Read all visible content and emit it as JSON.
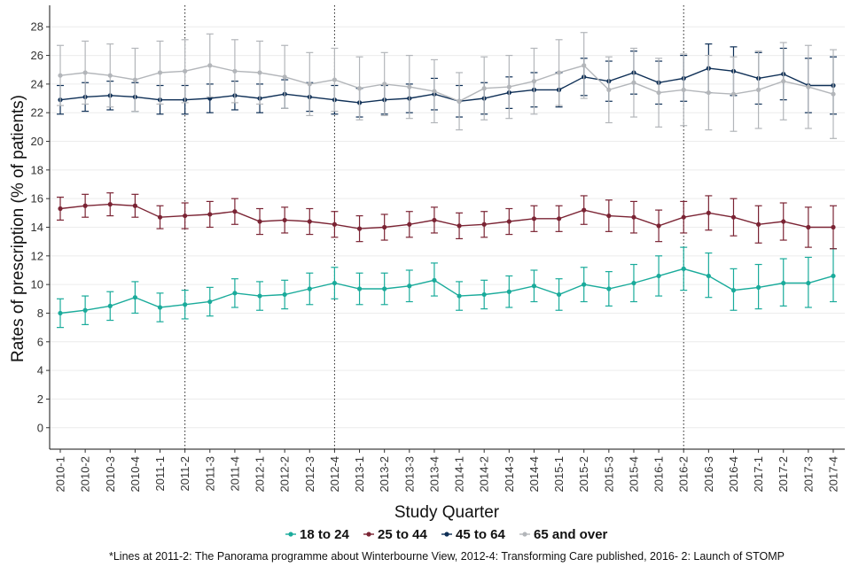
{
  "chart_data": {
    "type": "line",
    "xlabel": "Study Quarter",
    "ylabel": "Rates of prescription (% of patients)",
    "ylim": [
      -1.5,
      29.5
    ],
    "yticks": [
      0,
      2,
      4,
      6,
      8,
      10,
      12,
      14,
      16,
      18,
      20,
      22,
      24,
      26,
      28
    ],
    "grid": "horizontal",
    "legend_position": "bottom",
    "x": [
      "2010-1",
      "2010-2",
      "2010-3",
      "2010-4",
      "2011-1",
      "2011-2",
      "2011-3",
      "2011-4",
      "2012-1",
      "2012-2",
      "2012-3",
      "2012-4",
      "2013-1",
      "2013-2",
      "2013-3",
      "2013-4",
      "2014-1",
      "2014-2",
      "2014-3",
      "2014-4",
      "2015-1",
      "2015-2",
      "2015-3",
      "2015-4",
      "2016-1",
      "2016-2",
      "2016-3",
      "2016-4",
      "2017-1",
      "2017-2",
      "2017-3",
      "2017-4"
    ],
    "vlines": [
      "2011-2",
      "2012-4",
      "2016-2"
    ],
    "footnote": "*Lines at 2011-2: The Panorama programme about Winterbourne View, 2012-4: Transforming Care published, 2016- 2: Launch of STOMP",
    "series": [
      {
        "name": "18 to 24",
        "color": "#1aab9b",
        "values": [
          8.0,
          8.2,
          8.5,
          9.1,
          8.4,
          8.6,
          8.8,
          9.4,
          9.2,
          9.3,
          9.7,
          10.1,
          9.7,
          9.7,
          9.9,
          10.3,
          9.2,
          9.3,
          9.5,
          9.9,
          9.3,
          10.0,
          9.7,
          10.1,
          10.6,
          11.1,
          10.6,
          9.6,
          9.8,
          10.1,
          10.1,
          10.6
        ],
        "lower": [
          7.0,
          7.2,
          7.5,
          8.0,
          7.4,
          7.6,
          7.8,
          8.4,
          8.2,
          8.3,
          8.6,
          9.0,
          8.6,
          8.6,
          8.8,
          9.2,
          8.2,
          8.3,
          8.4,
          8.8,
          8.2,
          8.8,
          8.5,
          8.8,
          9.2,
          9.6,
          9.1,
          8.2,
          8.3,
          8.5,
          8.4,
          8.8
        ],
        "upper": [
          9.0,
          9.2,
          9.5,
          10.2,
          9.4,
          9.6,
          9.8,
          10.4,
          10.2,
          10.3,
          10.8,
          11.2,
          10.8,
          10.8,
          11.0,
          11.5,
          10.2,
          10.3,
          10.6,
          11.0,
          10.4,
          11.2,
          10.9,
          11.4,
          12.0,
          12.6,
          12.2,
          11.1,
          11.4,
          11.8,
          11.9,
          12.5
        ]
      },
      {
        "name": "25 to 44",
        "color": "#7b2434",
        "values": [
          15.3,
          15.5,
          15.6,
          15.5,
          14.7,
          14.8,
          14.9,
          15.1,
          14.4,
          14.5,
          14.4,
          14.2,
          13.9,
          14.0,
          14.2,
          14.5,
          14.1,
          14.2,
          14.4,
          14.6,
          14.6,
          15.2,
          14.8,
          14.7,
          14.1,
          14.7,
          15.0,
          14.7,
          14.2,
          14.4,
          14.0,
          14.0
        ],
        "lower": [
          14.5,
          14.7,
          14.8,
          14.7,
          13.9,
          13.9,
          14.0,
          14.2,
          13.5,
          13.6,
          13.5,
          13.3,
          13.0,
          13.1,
          13.3,
          13.6,
          13.2,
          13.3,
          13.5,
          13.7,
          13.7,
          14.2,
          13.7,
          13.6,
          13.0,
          13.6,
          13.8,
          13.4,
          12.9,
          13.1,
          12.6,
          12.5
        ],
        "upper": [
          16.1,
          16.3,
          16.4,
          16.3,
          15.5,
          15.7,
          15.8,
          16.0,
          15.3,
          15.4,
          15.3,
          15.1,
          14.8,
          14.9,
          15.1,
          15.4,
          15.0,
          15.1,
          15.3,
          15.5,
          15.5,
          16.2,
          15.9,
          15.8,
          15.2,
          15.8,
          16.2,
          16.0,
          15.5,
          15.7,
          15.4,
          15.5
        ]
      },
      {
        "name": "45 to 64",
        "color": "#0e2f56",
        "values": [
          22.9,
          23.1,
          23.2,
          23.1,
          22.9,
          22.9,
          23.0,
          23.2,
          23.0,
          23.3,
          23.1,
          22.9,
          22.7,
          22.9,
          23.0,
          23.3,
          22.8,
          23.0,
          23.4,
          23.6,
          23.6,
          24.5,
          24.2,
          24.8,
          24.1,
          24.4,
          25.1,
          24.9,
          24.4,
          24.7,
          23.9,
          23.9
        ],
        "lower": [
          21.9,
          22.1,
          22.2,
          22.1,
          21.9,
          21.9,
          22.0,
          22.2,
          22.0,
          22.3,
          22.1,
          21.9,
          21.7,
          21.9,
          22.0,
          22.2,
          21.7,
          21.9,
          22.3,
          22.4,
          22.4,
          23.2,
          22.8,
          23.3,
          22.6,
          22.8,
          23.4,
          23.2,
          22.6,
          22.9,
          22.0,
          21.9
        ],
        "upper": [
          23.9,
          24.1,
          24.2,
          24.1,
          23.9,
          23.9,
          24.0,
          24.2,
          24.0,
          24.3,
          24.1,
          23.9,
          23.7,
          23.9,
          24.0,
          24.4,
          23.9,
          24.1,
          24.5,
          24.8,
          24.8,
          25.8,
          25.6,
          26.3,
          25.6,
          26.0,
          26.8,
          26.6,
          26.2,
          26.5,
          25.8,
          25.9
        ]
      },
      {
        "name": "65 and over",
        "color": "#b3b6ba",
        "values": [
          24.6,
          24.8,
          24.6,
          24.3,
          24.8,
          24.9,
          25.3,
          24.9,
          24.8,
          24.5,
          24.0,
          24.3,
          23.7,
          24.0,
          23.8,
          23.5,
          22.8,
          23.7,
          23.8,
          24.2,
          24.8,
          25.3,
          23.6,
          24.1,
          23.4,
          23.6,
          23.4,
          23.3,
          23.6,
          24.2,
          23.8,
          23.3
        ],
        "lower": [
          22.5,
          22.6,
          22.4,
          22.1,
          22.6,
          22.7,
          23.1,
          22.7,
          22.6,
          22.3,
          21.8,
          22.1,
          21.5,
          21.8,
          21.6,
          21.3,
          20.8,
          21.5,
          21.6,
          21.9,
          22.5,
          23.0,
          21.3,
          21.7,
          21.0,
          21.1,
          20.8,
          20.7,
          20.9,
          21.5,
          20.9,
          20.2
        ],
        "upper": [
          26.7,
          27.0,
          26.8,
          26.5,
          27.0,
          27.1,
          27.5,
          27.1,
          27.0,
          26.7,
          26.2,
          26.5,
          25.9,
          26.2,
          26.0,
          25.7,
          24.8,
          25.9,
          26.0,
          26.5,
          27.1,
          27.6,
          25.9,
          26.5,
          25.8,
          26.1,
          26.0,
          25.9,
          26.3,
          26.9,
          26.7,
          26.4
        ]
      }
    ]
  }
}
